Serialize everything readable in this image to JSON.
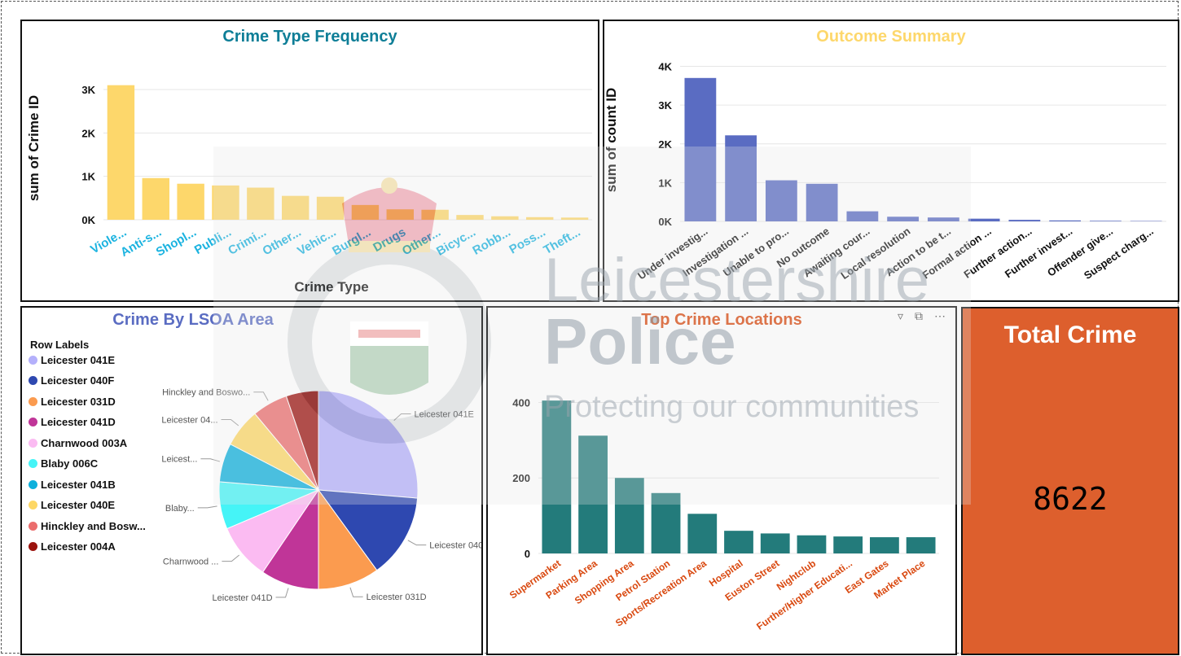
{
  "total": {
    "title": "Total Crime",
    "value": "8622"
  },
  "watermark": {
    "line1": "Leicestershire",
    "line2": "Police",
    "line3": "Protecting our communities",
    "badge_text": "LEICESTERSHIRE POLICE"
  },
  "crime_type": {
    "title": "Crime Type Frequency",
    "title_color": "#0e7e97",
    "bar_color": "#fdd76b",
    "label_color": "#1bb3e0",
    "x_title": "Crime Type",
    "y_title": "sum of Crime ID",
    "ticks": [
      {
        "v": 0,
        "t": "0K"
      },
      {
        "v": 1000,
        "t": "1K"
      },
      {
        "v": 2000,
        "t": "2K"
      },
      {
        "v": 3000,
        "t": "3K"
      }
    ]
  },
  "outcome": {
    "title": "Outcome Summary",
    "title_color": "#fdd76b",
    "bar_color": "#5a6cc2",
    "label_color": "#111111",
    "y_title": "sum of count ID",
    "ticks": [
      {
        "v": 0,
        "t": "0K"
      },
      {
        "v": 1000,
        "t": "1K"
      },
      {
        "v": 2000,
        "t": "2K"
      },
      {
        "v": 3000,
        "t": "3K"
      },
      {
        "v": 4000,
        "t": "4K"
      }
    ]
  },
  "lsoa": {
    "title": "Crime By LSOA Area",
    "title_color": "#5a6cc2",
    "legend_title": "Row Labels"
  },
  "locations": {
    "title": "Top Crime Locations",
    "title_color": "#d9480f",
    "bar_color": "#237b7b",
    "label_color": "#d9480f",
    "ticks": [
      {
        "v": 0,
        "t": "0"
      },
      {
        "v": 200,
        "t": "200"
      },
      {
        "v": 400,
        "t": "400"
      }
    ],
    "toolbar": [
      "filter-icon",
      "focus-mode-icon",
      "more-options-icon"
    ]
  },
  "chart_data": [
    {
      "type": "bar",
      "title": "Crime Type Frequency",
      "xlabel": "Crime Type",
      "ylabel": "sum of Crime ID",
      "ylim": [
        0,
        3300
      ],
      "categories": [
        "Viole...",
        "Anti-s...",
        "Shopl...",
        "Publi...",
        "Crimi...",
        "Other...",
        "Vehic...",
        "Burgl...",
        "Drugs",
        "Other...",
        "Bicyc...",
        "Robb...",
        "Poss...",
        "Theft..."
      ],
      "values": [
        3100,
        960,
        830,
        790,
        740,
        550,
        530,
        340,
        240,
        230,
        110,
        80,
        60,
        50
      ]
    },
    {
      "type": "bar",
      "title": "Outcome Summary",
      "xlabel": "",
      "ylabel": "sum of count ID",
      "ylim": [
        0,
        4200
      ],
      "categories": [
        "Under investig...",
        "Investigation ...",
        "Unable to pro...",
        "No outcome",
        "Awaiting cour...",
        "Local resolution",
        "Action to be t...",
        "Formal action ...",
        "Further action...",
        "Further invest...",
        "Offender give...",
        "Suspect charg..."
      ],
      "values": [
        3700,
        2220,
        1060,
        970,
        260,
        120,
        100,
        70,
        40,
        25,
        15,
        10
      ]
    },
    {
      "type": "pie",
      "title": "Crime By LSOA Area",
      "categories": [
        "Leicester 041E",
        "Leicester 040F",
        "Leicester 031D",
        "Leicester 041D",
        "Charnwood 003A",
        "Blaby 006C",
        "Leicester 041B",
        "Leicester 040E",
        "Hinckley and Bosw...",
        "Leicester 004A"
      ],
      "values": [
        25.0,
        13.0,
        9.5,
        9.0,
        8.7,
        7.3,
        6.0,
        6.0,
        5.5,
        5.0
      ],
      "colors": [
        "#b4b0fb",
        "#2e48b0",
        "#fb9b4f",
        "#c03598",
        "#fbbbf2",
        "#45f4f7",
        "#0db0dc",
        "#fdd765",
        "#eb6d6d",
        "#9b130e"
      ],
      "callouts": [
        "Leicester 041E",
        "Leicester 040F",
        "Leicester 031D",
        "Leicester 041D",
        "Charnwood ...",
        "Blaby...",
        "Leicest...",
        "Leicester 04...",
        "Hinckley and Boswo...",
        ""
      ]
    },
    {
      "type": "bar",
      "title": "Top Crime Locations",
      "xlabel": "",
      "ylabel": "",
      "ylim": [
        0,
        470
      ],
      "categories": [
        "Supermarket",
        "Parking Area",
        "Shopping Area",
        "Petrol Station",
        "Sports/Recreation Area",
        "Hospital",
        "Euston Street",
        "Nightclub",
        "Further/Higher Educati...",
        "East Gates",
        "Market Place"
      ],
      "values": [
        405,
        312,
        200,
        160,
        105,
        60,
        53,
        48,
        45,
        43,
        43
      ]
    }
  ]
}
